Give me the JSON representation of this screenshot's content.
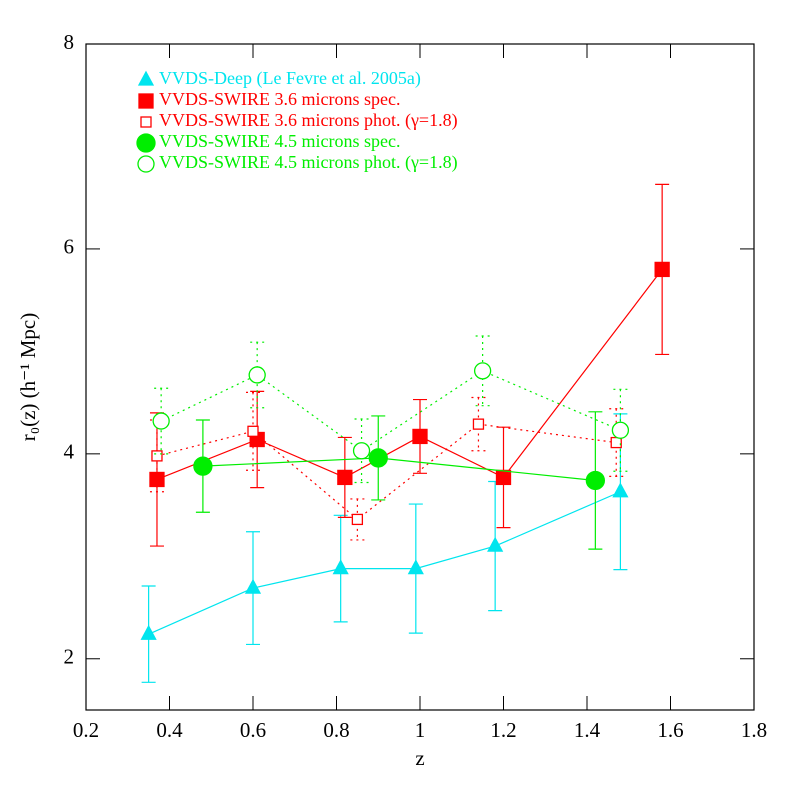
{
  "chart_data": {
    "type": "errorbar",
    "x_label": "z",
    "y_label": "r₀(z) (h⁻¹ Mpc)",
    "xlim": [
      0.2,
      1.8
    ],
    "xticks": [
      0.2,
      0.4,
      0.6,
      0.8,
      1,
      1.2,
      1.4,
      1.6,
      1.8
    ],
    "ylim": [
      1.5,
      8
    ],
    "yticks": [
      2,
      4,
      6,
      8
    ],
    "legend": "top-left",
    "series": [
      {
        "name": "VVDS-Deep (Le Fevre et al. 2005a)",
        "color": "#00e5ee",
        "marker": "triangle",
        "linestyle": "solid",
        "x": [
          0.35,
          0.6,
          0.81,
          0.99,
          1.18,
          1.48
        ],
        "values": [
          2.24,
          2.69,
          2.88,
          2.88,
          3.1,
          3.63
        ],
        "errors": [
          0.47,
          0.55,
          0.52,
          0.63,
          0.63,
          0.76
        ]
      },
      {
        "name": "VVDS-SWIRE 3.6 microns spec.",
        "color": "#ff0000",
        "marker": "square",
        "linestyle": "solid",
        "x": [
          0.37,
          0.61,
          0.82,
          1.0,
          1.2,
          1.58
        ],
        "values": [
          3.75,
          4.14,
          3.77,
          4.17,
          3.77,
          5.8
        ],
        "errors": [
          0.65,
          0.47,
          0.39,
          0.36,
          0.49,
          0.83
        ]
      },
      {
        "name": "VVDS-SWIRE 3.6 microns phot. (γ=1.8)",
        "color": "#ff0000",
        "marker": "square-open",
        "linestyle": "dotted",
        "x": [
          0.37,
          0.6,
          0.85,
          1.14,
          1.47
        ],
        "values": [
          3.98,
          4.22,
          3.36,
          4.29,
          4.11
        ],
        "errors": [
          0.35,
          0.38,
          0.2,
          0.26,
          0.33
        ]
      },
      {
        "name": "VVDS-SWIRE 4.5 microns spec.",
        "color": "#00ee00",
        "marker": "circle",
        "linestyle": "solid",
        "x": [
          0.48,
          0.9,
          1.42
        ],
        "values": [
          3.88,
          3.96,
          3.74
        ],
        "errors": [
          0.45,
          0.41,
          0.67
        ]
      },
      {
        "name": "VVDS-SWIRE 4.5 microns phot. (γ=1.8)",
        "color": "#00ee00",
        "marker": "circle-open",
        "linestyle": "dotted",
        "x": [
          0.38,
          0.61,
          0.86,
          1.15,
          1.48
        ],
        "values": [
          4.32,
          4.77,
          4.03,
          4.81,
          4.23
        ],
        "errors": [
          0.32,
          0.32,
          0.31,
          0.34,
          0.4
        ]
      }
    ]
  }
}
